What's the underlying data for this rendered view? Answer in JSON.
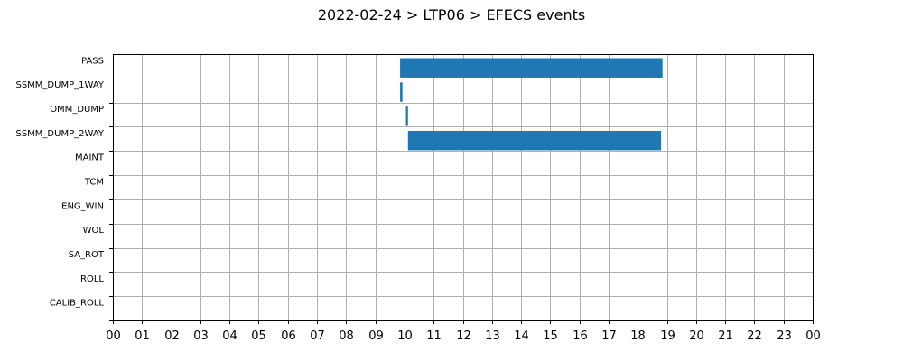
{
  "chart_data": {
    "type": "bar",
    "orientation": "horizontal",
    "chart_subtype": "gantt",
    "title": "2022-02-24 > LTP06 > EFECS events",
    "xlabel": "",
    "ylabel": "",
    "xlim": [
      0,
      24
    ],
    "grid": true,
    "bar_color": "#1f77b4",
    "x_tick_labels": [
      "00",
      "01",
      "02",
      "03",
      "04",
      "05",
      "06",
      "07",
      "08",
      "09",
      "10",
      "11",
      "12",
      "13",
      "14",
      "15",
      "16",
      "17",
      "18",
      "19",
      "20",
      "21",
      "22",
      "23",
      "00"
    ],
    "categories": [
      "PASS",
      "SSMM_DUMP_1WAY",
      "OMM_DUMP",
      "SSMM_DUMP_2WAY",
      "MAINT",
      "TCM",
      "ENG_WIN",
      "WOL",
      "SA_ROT",
      "ROLL",
      "CALIB_ROLL"
    ],
    "events": [
      {
        "category": "PASS",
        "start": 9.85,
        "end": 18.85
      },
      {
        "category": "SSMM_DUMP_1WAY",
        "start": 9.85,
        "end": 9.93
      },
      {
        "category": "OMM_DUMP",
        "start": 10.05,
        "end": 10.12
      },
      {
        "category": "SSMM_DUMP_2WAY",
        "start": 10.12,
        "end": 18.8
      }
    ]
  }
}
